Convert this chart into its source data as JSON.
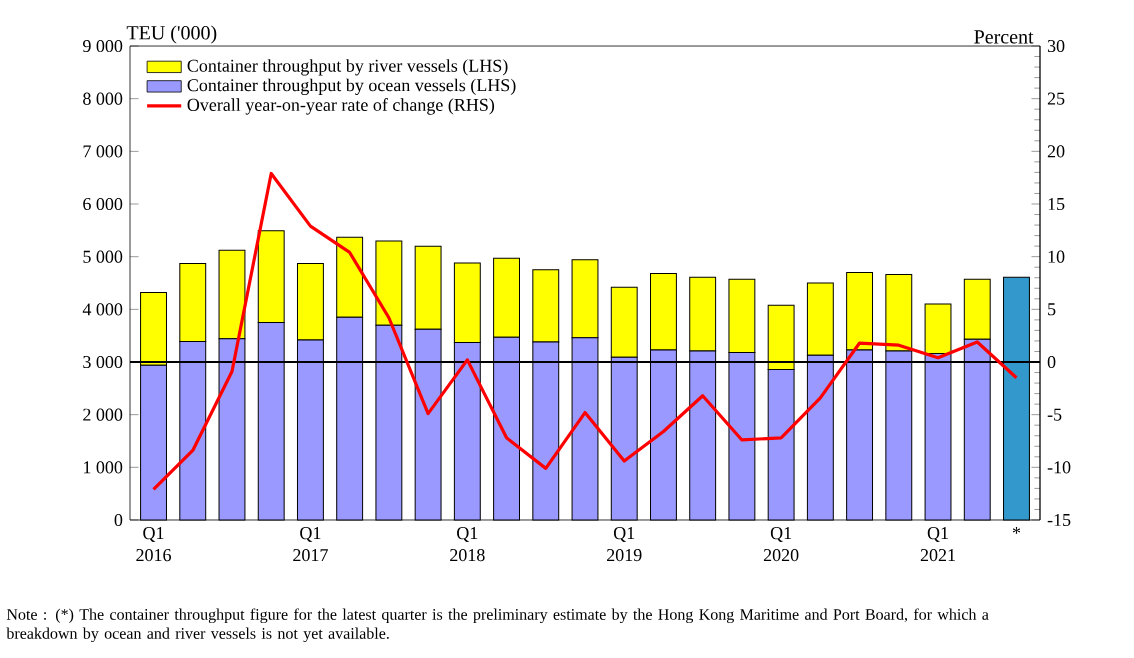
{
  "chart_data": {
    "type": "bar",
    "stacked": true,
    "ylabel": "TEU ('000)",
    "y2label": "Percent",
    "categories": [
      "Q1 2016",
      null,
      null,
      null,
      "Q1 2017",
      null,
      null,
      null,
      "Q1 2018",
      null,
      null,
      null,
      "Q1 2019",
      null,
      null,
      null,
      "Q1 2020",
      null,
      null,
      null,
      "Q1 2021",
      null,
      "*"
    ],
    "series": [
      {
        "name": "Container throughput by ocean vessels (LHS)",
        "color": "#9999ff",
        "values": [
          2940,
          3390,
          3440,
          3750,
          3420,
          3850,
          3700,
          3620,
          3370,
          3470,
          3380,
          3460,
          3090,
          3230,
          3210,
          3180,
          2860,
          3130,
          3230,
          3210,
          3160,
          3430,
          null
        ]
      },
      {
        "name": "Container throughput by river vessels (LHS)",
        "color": "#ffff00",
        "values": [
          1380,
          1480,
          1680,
          1740,
          1450,
          1520,
          1600,
          1580,
          1510,
          1500,
          1370,
          1480,
          1330,
          1450,
          1400,
          1390,
          1220,
          1370,
          1470,
          1450,
          940,
          1140,
          null
        ]
      },
      {
        "color": "#3399cc",
        "values": [
          null,
          null,
          null,
          null,
          null,
          null,
          null,
          null,
          null,
          null,
          null,
          null,
          null,
          null,
          null,
          null,
          null,
          null,
          null,
          null,
          null,
          null,
          4610
        ]
      },
      {
        "name": "Overall year-on-year rate of change (RHS)",
        "type": "line",
        "axis": "y2",
        "color": "#ff0000",
        "values": [
          -12.1,
          -8.4,
          -0.9,
          17.9,
          12.9,
          10.4,
          4.2,
          -4.9,
          0.2,
          -7.2,
          -10.1,
          -4.8,
          -9.4,
          -6.6,
          -3.2,
          -7.4,
          -7.2,
          -3.4,
          1.8,
          1.6,
          0.4,
          1.9,
          -1.5
        ]
      }
    ],
    "ylim": [
      0,
      9000
    ],
    "yticks": [
      {
        "value": 0,
        "label": "0"
      },
      {
        "value": 1000,
        "label": "1 000"
      },
      {
        "value": 2000,
        "label": "2 000"
      },
      {
        "value": 3000,
        "label": "3 000"
      },
      {
        "value": 4000,
        "label": "4 000"
      },
      {
        "value": 5000,
        "label": "5 000"
      },
      {
        "value": 6000,
        "label": "6 000"
      },
      {
        "value": 7000,
        "label": "7 000"
      },
      {
        "value": 8000,
        "label": "8 000"
      },
      {
        "value": 9000,
        "label": "9 000"
      }
    ],
    "y2lim": [
      -15,
      30
    ],
    "y2ticks": [
      -15,
      -10,
      -5,
      0,
      5,
      10,
      15,
      20,
      25,
      30
    ],
    "ref_lines": [
      {
        "axis": "y2",
        "value": 0,
        "color": "#000000"
      }
    ],
    "legend": "top left",
    "grid": false,
    "annotations": [
      "Note : (*) The container throughput figure for the latest quarter is the preliminary estimate by the Hong Kong Maritime and Port Board, for which a breakdown by ocean and river vessels is not yet available."
    ]
  }
}
